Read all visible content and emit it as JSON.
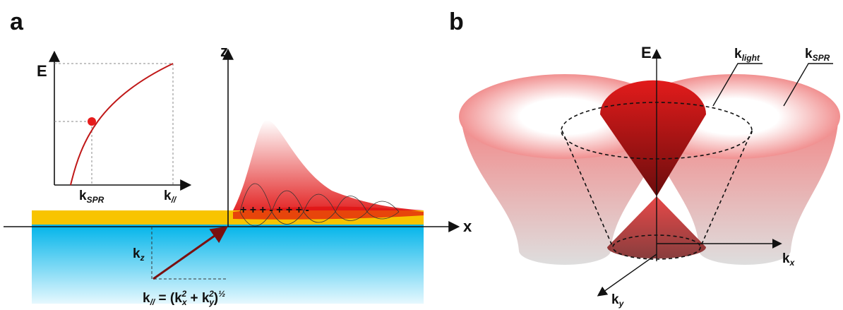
{
  "panel_a": {
    "label": "a",
    "inset": {
      "y_axis": "E",
      "x_tick": {
        "main": "k",
        "sub": "SPR"
      },
      "x_end": {
        "main": "k",
        "sub": "//"
      }
    },
    "z_axis": "z",
    "x_axis": "x",
    "charges": "+ + +  -  + + + -",
    "kz": {
      "main": "k",
      "sub": "z"
    },
    "formula": [
      "k",
      "//",
      " = (k",
      "x",
      "2",
      " +  k",
      "y",
      "2",
      ")",
      "½"
    ]
  },
  "panel_b": {
    "label": "b",
    "e_axis": "E",
    "k_light": {
      "main": "k",
      "sub": "light"
    },
    "k_spr": {
      "main": "k",
      "sub": "SPR"
    },
    "kx": {
      "main": "k",
      "sub": "x"
    },
    "ky": {
      "main": "k",
      "sub": "y"
    }
  }
}
